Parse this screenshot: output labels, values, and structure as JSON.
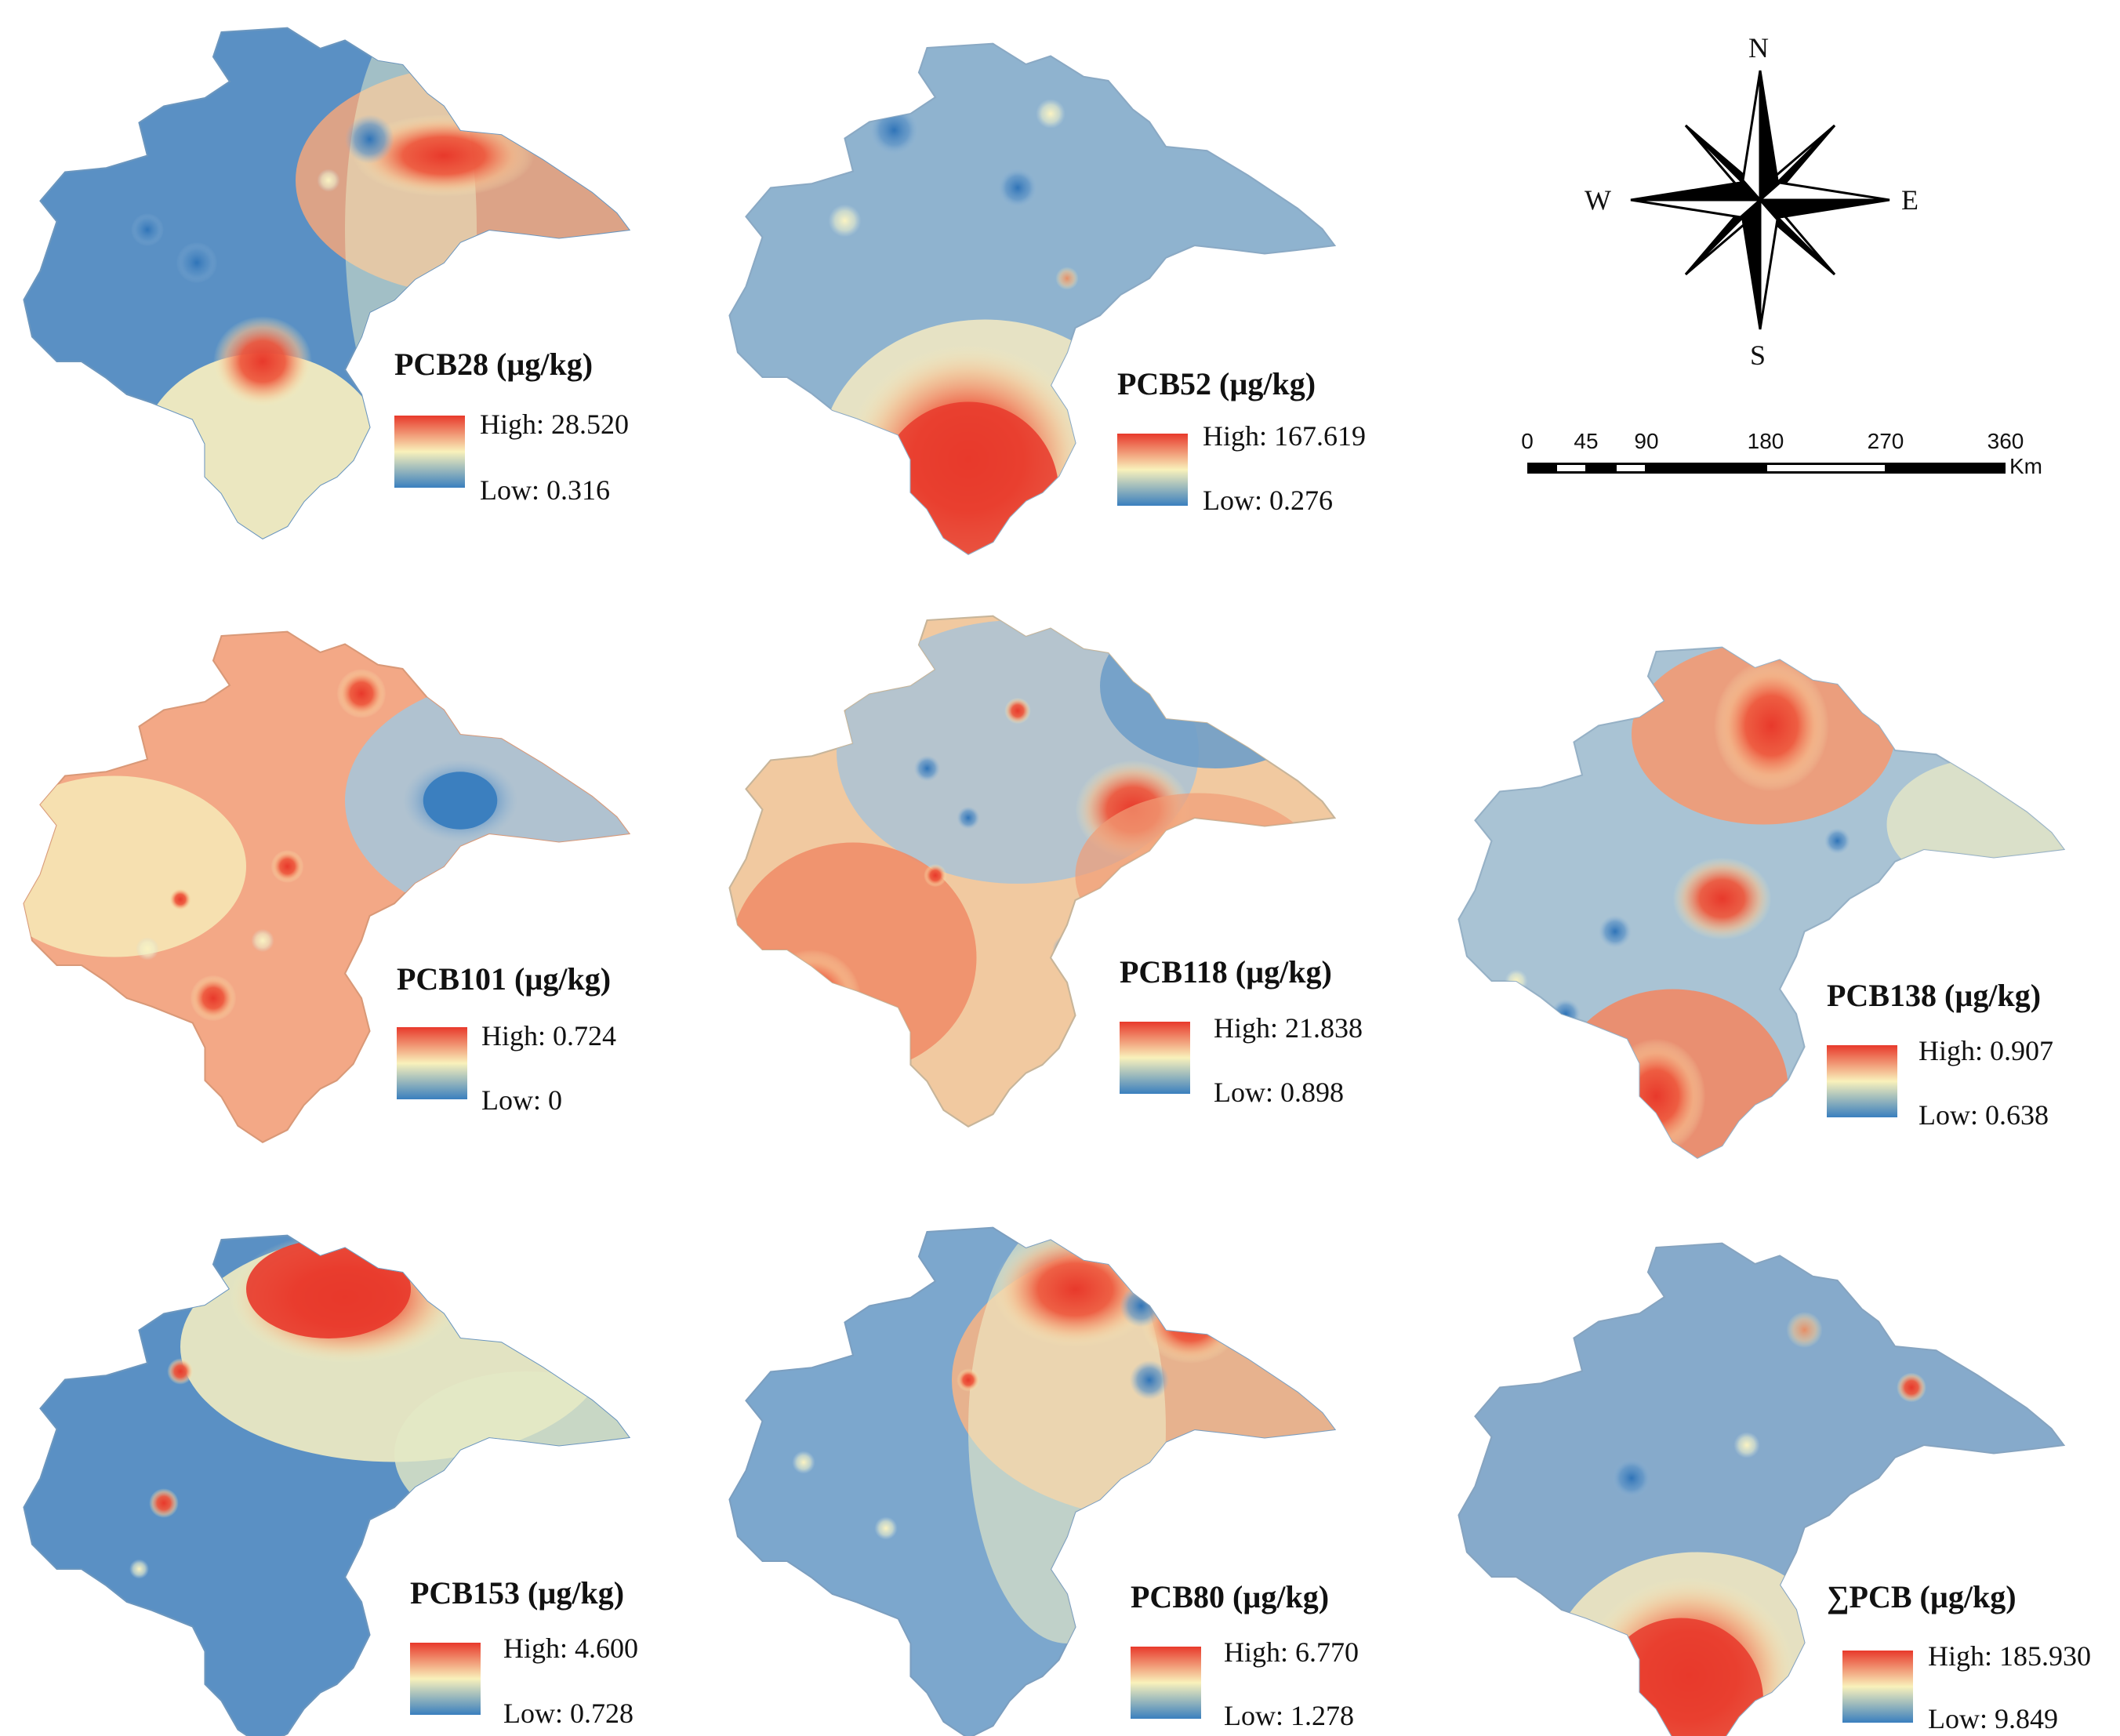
{
  "colors": {
    "high": "#e8392b",
    "mid": "#f9f1bb",
    "low": "#3a7fbe",
    "base": "#6f9fc9"
  },
  "panels": [
    {
      "id": "pcb28",
      "title": "PCB28 (µg/kg)",
      "high_label": "High: 28.520",
      "low_label": "Low: 0.316",
      "high": 28.52,
      "low": 0.316
    },
    {
      "id": "pcb52",
      "title": "PCB52 (µg/kg)",
      "high_label": "High: 167.619",
      "low_label": "Low: 0.276",
      "high": 167.619,
      "low": 0.276
    },
    {
      "id": "pcb101",
      "title": "PCB101 (µg/kg)",
      "high_label": "High: 0.724",
      "low_label": "Low: 0",
      "high": 0.724,
      "low": 0
    },
    {
      "id": "pcb118",
      "title": "PCB118 (µg/kg)",
      "high_label": "High: 21.838",
      "low_label": "Low: 0.898",
      "high": 21.838,
      "low": 0.898
    },
    {
      "id": "pcb138",
      "title": "PCB138 (µg/kg)",
      "high_label": "High: 0.907",
      "low_label": "Low: 0.638",
      "high": 0.907,
      "low": 0.638
    },
    {
      "id": "pcb153",
      "title": "PCB153 (µg/kg)",
      "high_label": "High: 4.600",
      "low_label": "Low: 0.728",
      "high": 4.6,
      "low": 0.728
    },
    {
      "id": "pcb80",
      "title": "PCB80 (µg/kg)",
      "high_label": "High: 6.770",
      "low_label": "Low: 1.278",
      "high": 6.77,
      "low": 1.278
    },
    {
      "id": "sumpcb",
      "title": "∑PCB (µg/kg)",
      "high_label": "High: 185.930",
      "low_label": "Low: 9.849",
      "high": 185.93,
      "low": 9.849
    }
  ],
  "compass": {
    "n": "N",
    "s": "S",
    "e": "E",
    "w": "W"
  },
  "scale_bar": {
    "ticks": [
      "0",
      "45",
      "90",
      "180",
      "270",
      "360"
    ],
    "unit": "Km"
  }
}
